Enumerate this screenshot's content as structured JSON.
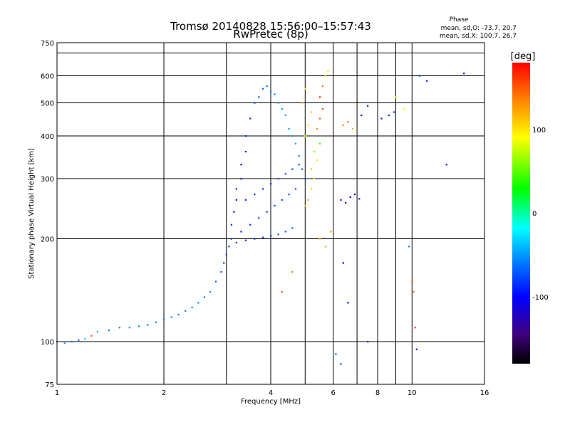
{
  "title": "Tromsø 20140828 15:56:00–15:57:43",
  "subtitle": "RwPretec (8p)",
  "phase_stats": {
    "heading": "Phase",
    "line_o": "mean, sd,O: -73.7, 20.7",
    "line_x": "mean, sd,X: 100.7, 26.7"
  },
  "chart_data": {
    "type": "scatter",
    "xlabel": "Frequency [MHz]",
    "ylabel": "Stationary phase Virtual Height [km]",
    "xscale": "log",
    "yscale": "log",
    "xlim": [
      1,
      16
    ],
    "ylim": [
      75,
      750
    ],
    "x_ticks": [
      1,
      2,
      4,
      6,
      8,
      10,
      16
    ],
    "x_tick_labels": [
      "1",
      "2",
      "4",
      "6",
      "8",
      "10",
      "16"
    ],
    "x_minor_gridlines": [
      3,
      5,
      7,
      9
    ],
    "y_ticks": [
      75,
      100,
      200,
      300,
      400,
      500,
      600,
      750
    ],
    "y_tick_labels": [
      "75",
      "100",
      "200",
      "300",
      "400",
      "500",
      "600",
      "750"
    ],
    "y_minor_gridlines": [
      700
    ],
    "grid": true,
    "colorbar": {
      "label": "[deg]",
      "range": [
        -180,
        180
      ],
      "ticks": [
        100,
        0,
        -100
      ],
      "tick_labels": [
        "100",
        "0",
        "-100"
      ]
    },
    "series": [
      {
        "points": [
          [
            1.0,
            100,
            -60
          ],
          [
            1.05,
            99,
            -55
          ],
          [
            1.1,
            100,
            -70
          ],
          [
            1.15,
            101,
            -60
          ],
          [
            1.2,
            102,
            -40
          ],
          [
            1.25,
            104,
            150
          ],
          [
            1.3,
            107,
            -50
          ],
          [
            1.4,
            108,
            -65
          ],
          [
            1.5,
            110,
            -60
          ],
          [
            1.6,
            110,
            -55
          ],
          [
            1.7,
            111,
            -60
          ],
          [
            1.8,
            112,
            -62
          ],
          [
            1.9,
            114,
            -58
          ],
          [
            2.0,
            116,
            -60
          ],
          [
            2.1,
            118,
            -55
          ],
          [
            2.2,
            120,
            -62
          ],
          [
            2.3,
            123,
            -60
          ],
          [
            2.4,
            126,
            -58
          ],
          [
            2.5,
            130,
            -55
          ],
          [
            2.6,
            135,
            -65
          ],
          [
            2.7,
            140,
            -60
          ],
          [
            2.8,
            150,
            -70
          ],
          [
            2.9,
            160,
            -75
          ],
          [
            2.95,
            170,
            -80
          ],
          [
            3.0,
            180,
            -85
          ],
          [
            3.05,
            190,
            -80
          ],
          [
            3.1,
            200,
            -88
          ],
          [
            3.1,
            220,
            -90
          ],
          [
            3.15,
            240,
            -92
          ],
          [
            3.2,
            260,
            -95
          ],
          [
            3.2,
            280,
            -90
          ],
          [
            3.3,
            300,
            -92
          ],
          [
            3.3,
            330,
            -95
          ],
          [
            3.4,
            360,
            -90
          ],
          [
            3.4,
            400,
            -88
          ],
          [
            3.5,
            450,
            -85
          ],
          [
            3.6,
            500,
            -80
          ],
          [
            3.7,
            520,
            -75
          ],
          [
            3.8,
            550,
            -70
          ],
          [
            3.9,
            560,
            -65
          ],
          [
            4.0,
            540,
            -60
          ],
          [
            4.1,
            530,
            -60
          ],
          [
            4.2,
            500,
            -55
          ],
          [
            4.3,
            480,
            -55
          ],
          [
            4.4,
            460,
            -50
          ],
          [
            4.5,
            420,
            -52
          ],
          [
            4.6,
            400,
            -50
          ],
          [
            4.7,
            380,
            -55
          ],
          [
            4.8,
            350,
            -60
          ],
          [
            4.9,
            320,
            -70
          ],
          [
            5.0,
            300,
            -75
          ],
          [
            3.3,
            210,
            -92
          ],
          [
            3.5,
            220,
            -88
          ],
          [
            3.7,
            230,
            -85
          ],
          [
            3.9,
            240,
            -82
          ],
          [
            4.1,
            250,
            -80
          ],
          [
            4.3,
            260,
            -78
          ],
          [
            4.5,
            270,
            -75
          ],
          [
            4.7,
            280,
            -72
          ],
          [
            3.4,
            260,
            -90
          ],
          [
            3.6,
            270,
            -88
          ],
          [
            3.8,
            280,
            -85
          ],
          [
            4.0,
            290,
            -82
          ],
          [
            4.2,
            300,
            -80
          ],
          [
            4.4,
            310,
            -78
          ],
          [
            4.6,
            320,
            -75
          ],
          [
            4.8,
            330,
            -72
          ],
          [
            3.2,
            195,
            -90
          ],
          [
            3.4,
            198,
            -88
          ],
          [
            3.6,
            200,
            -85
          ],
          [
            3.8,
            202,
            -82
          ],
          [
            4.0,
            204,
            -80
          ],
          [
            4.2,
            206,
            -78
          ],
          [
            4.4,
            210,
            -75
          ],
          [
            4.6,
            215,
            -72
          ],
          [
            5.0,
            250,
            110
          ],
          [
            5.1,
            260,
            120
          ],
          [
            5.2,
            280,
            105
          ],
          [
            5.3,
            300,
            100
          ],
          [
            5.2,
            320,
            115
          ],
          [
            5.4,
            340,
            95
          ],
          [
            5.3,
            360,
            60
          ],
          [
            5.5,
            380,
            40
          ],
          [
            5.4,
            420,
            130
          ],
          [
            5.5,
            450,
            150
          ],
          [
            5.6,
            480,
            160
          ],
          [
            5.5,
            520,
            170
          ],
          [
            5.6,
            560,
            140
          ],
          [
            5.7,
            600,
            100
          ],
          [
            5.8,
            620,
            80
          ],
          [
            5.0,
            400,
            90
          ],
          [
            5.1,
            430,
            100
          ],
          [
            5.2,
            470,
            110
          ],
          [
            4.9,
            500,
            120
          ],
          [
            5.0,
            550,
            100
          ],
          [
            6.3,
            260,
            -95
          ],
          [
            6.5,
            255,
            -100
          ],
          [
            6.7,
            265,
            -98
          ],
          [
            6.9,
            270,
            -95
          ],
          [
            7.1,
            262,
            -92
          ],
          [
            6.4,
            430,
            130
          ],
          [
            6.6,
            440,
            140
          ],
          [
            6.8,
            420,
            120
          ],
          [
            7.2,
            460,
            -90
          ],
          [
            7.5,
            490,
            -85
          ],
          [
            8.2,
            450,
            -95
          ],
          [
            8.6,
            460,
            -90
          ],
          [
            8.9,
            470,
            -80
          ],
          [
            9.0,
            520,
            80
          ],
          [
            9.5,
            480,
            90
          ],
          [
            10.5,
            600,
            -90
          ],
          [
            11.0,
            580,
            -95
          ],
          [
            12.5,
            330,
            -95
          ],
          [
            14.0,
            610,
            -100
          ],
          [
            10.0,
            150,
            150
          ],
          [
            10.1,
            140,
            145
          ],
          [
            10.2,
            110,
            160
          ],
          [
            9.8,
            190,
            -60
          ],
          [
            6.4,
            170,
            -100
          ],
          [
            6.6,
            130,
            -95
          ],
          [
            7.5,
            100,
            -90
          ],
          [
            6.1,
            92,
            -70
          ],
          [
            6.3,
            86,
            -75
          ],
          [
            10.3,
            95,
            -100
          ],
          [
            5.5,
            200,
            110
          ],
          [
            5.7,
            190,
            120
          ],
          [
            5.9,
            210,
            130
          ],
          [
            4.6,
            160,
            140
          ],
          [
            4.3,
            140,
            150
          ]
        ]
      }
    ]
  }
}
